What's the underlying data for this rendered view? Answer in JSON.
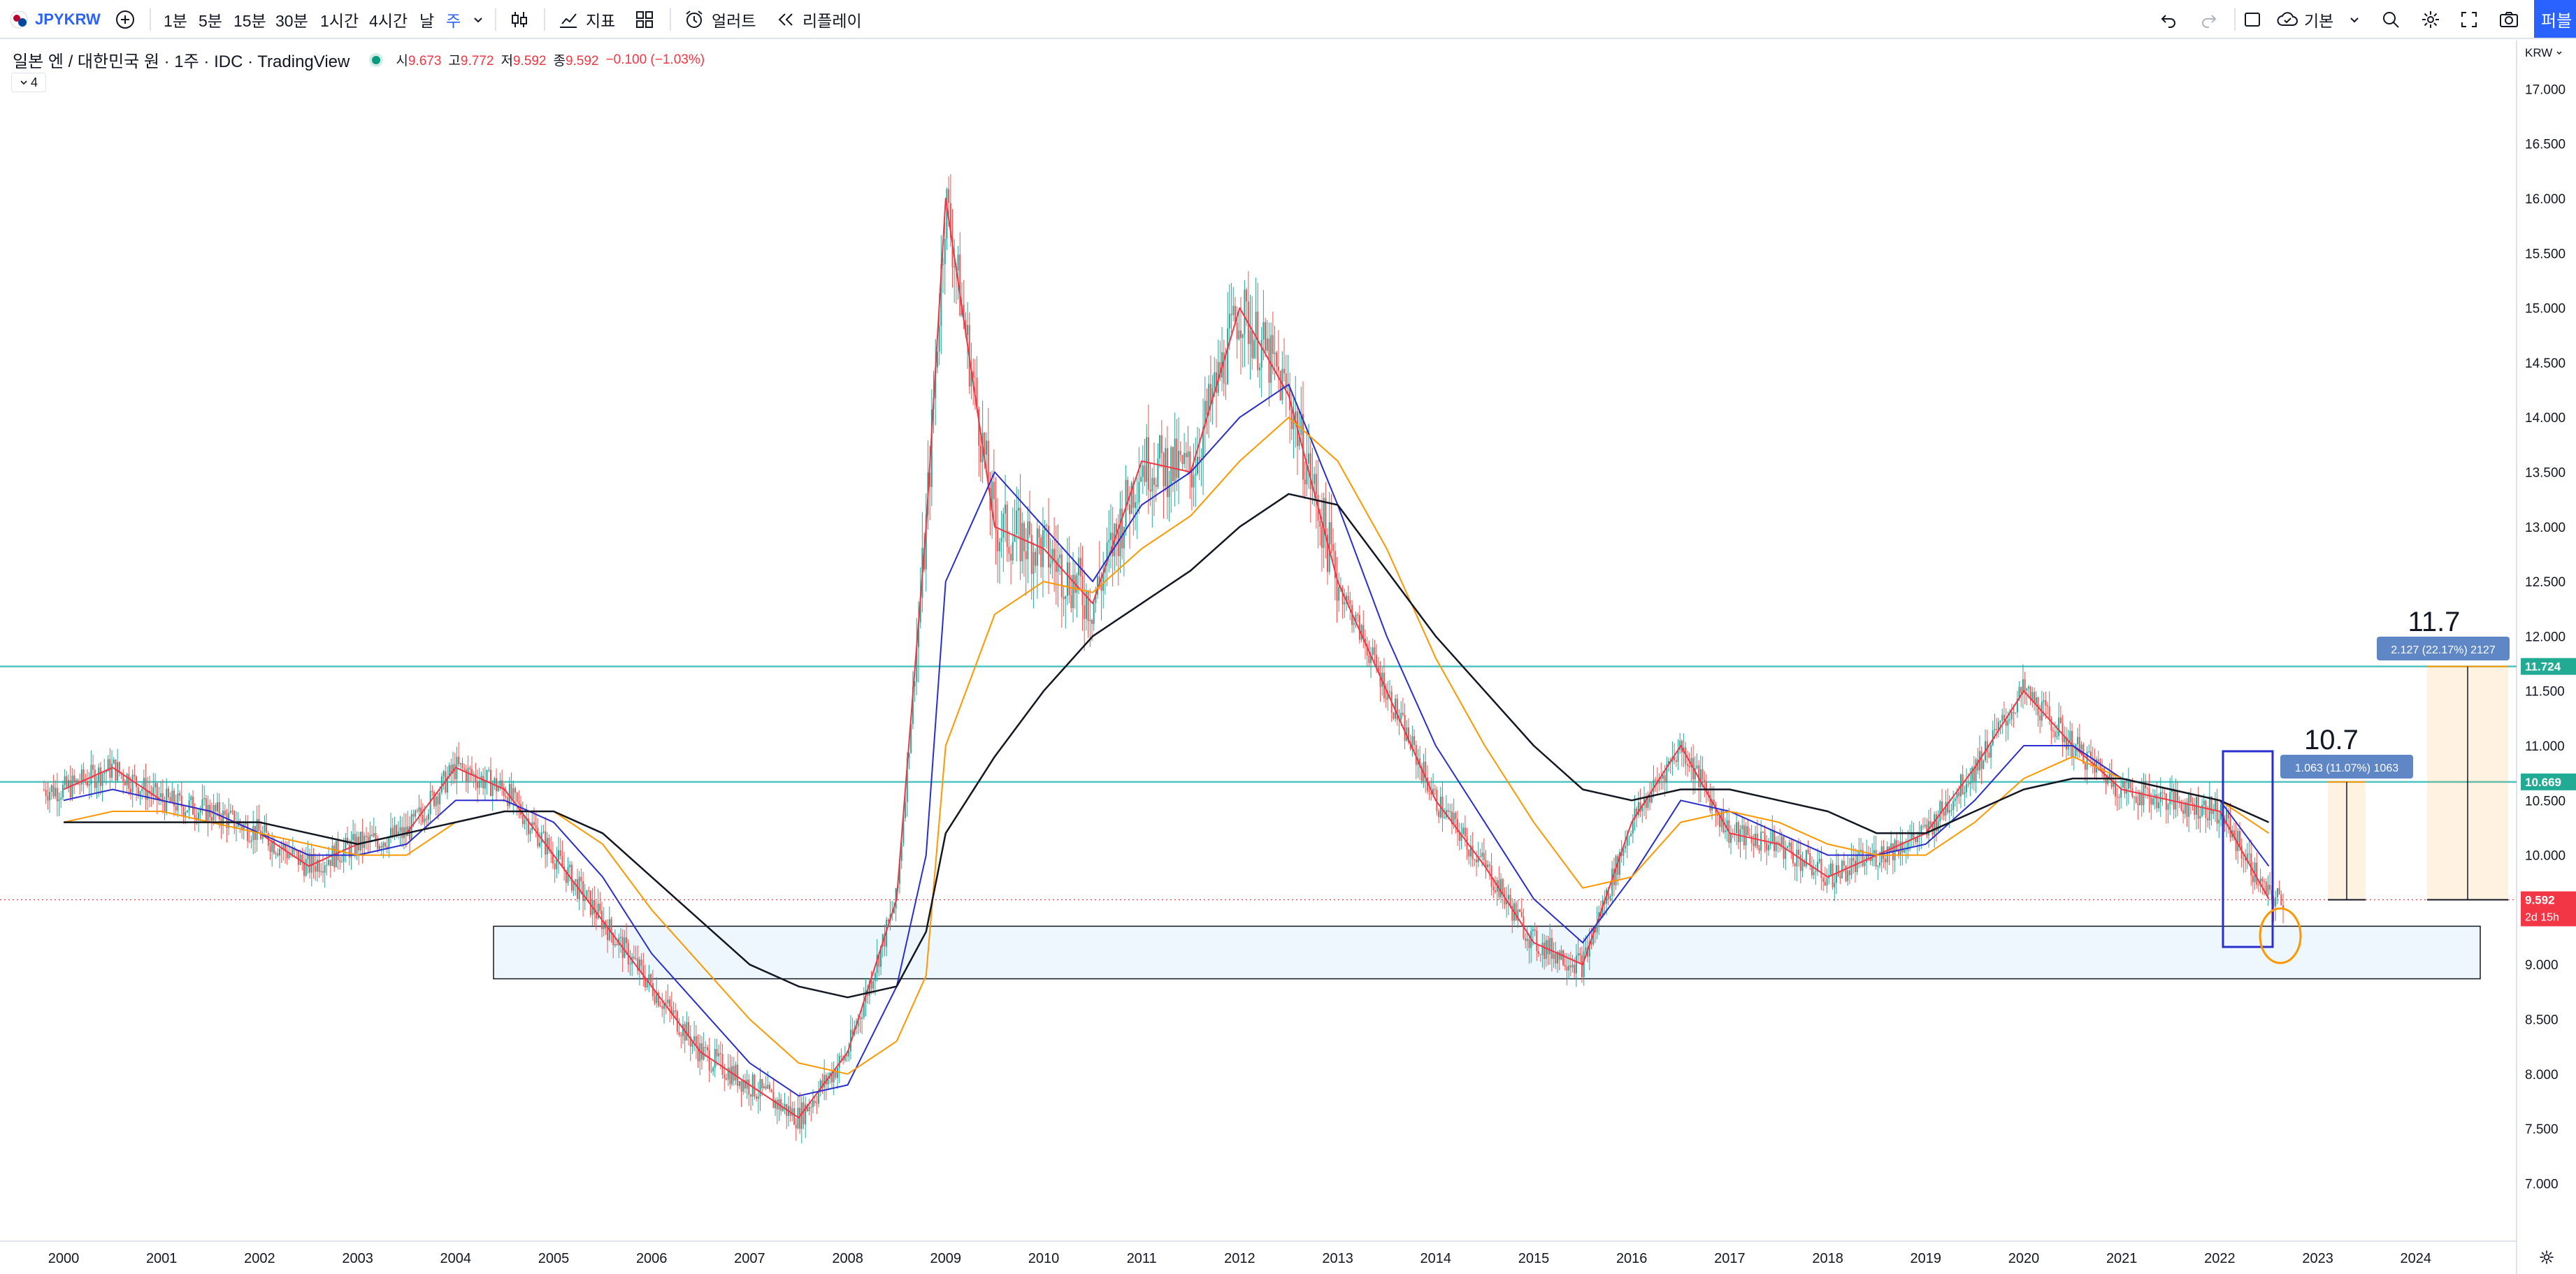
{
  "toolbar": {
    "symbol": "JPYKRW",
    "intervals": [
      "1분",
      "5분",
      "15분",
      "30분",
      "1시간",
      "4시간",
      "날",
      "주"
    ],
    "active_interval": "주",
    "indicators_label": "지표",
    "alerts_label": "얼러트",
    "replay_label": "리플레이",
    "layout_label": "기본",
    "publish_label": "퍼블"
  },
  "legend": {
    "title": "일본 엔 / 대한민국 원 · 1주 · IDC · TradingView",
    "open_label": "시",
    "open": "9.673",
    "high_label": "고",
    "high": "9.772",
    "low_label": "저",
    "low": "9.592",
    "close_label": "종",
    "close": "9.592",
    "change": "−0.100 (−1.03%)",
    "indicator_count": "4"
  },
  "price_axis": {
    "currency": "KRW",
    "ticks": [
      "17.000",
      "16.500",
      "16.000",
      "15.500",
      "15.000",
      "14.500",
      "14.000",
      "13.500",
      "13.000",
      "12.500",
      "12.000",
      "11.500",
      "11.000",
      "10.500",
      "10.000",
      "9.500",
      "9.000",
      "8.500",
      "8.000",
      "7.500",
      "7.000"
    ],
    "level_11724": "11.724",
    "level_10669": "10.669",
    "last_price": "9.592",
    "countdown": "2d 15h"
  },
  "time_axis": {
    "ticks": [
      "2000",
      "2001",
      "2002",
      "2003",
      "2004",
      "2005",
      "2006",
      "2007",
      "2008",
      "2009",
      "2010",
      "2011",
      "2012",
      "2013",
      "2014",
      "2015",
      "2016",
      "2017",
      "2018",
      "2019",
      "2020",
      "2021",
      "2022",
      "2023",
      "2024"
    ]
  },
  "annotations": {
    "target1_text": "10.7",
    "target1_measure": "1.063 (11.07%) 1063",
    "target2_text": "11.7",
    "target2_measure": "2.127 (22.17%) 2127"
  },
  "colors": {
    "up": "#26a69a",
    "down": "#ef5350",
    "ma_red": "#f23645",
    "ma_blue": "#2a2ecd",
    "ma_orange": "#ff9800",
    "ma_black": "#131722",
    "hline": "#4fc3c0",
    "accent": "#2962ff"
  },
  "chart_data": {
    "type": "line",
    "title": "일본 엔 / 대한민국 원 · 1주 · IDC · TradingView",
    "xlabel": "",
    "ylabel": "",
    "ylim": [
      6.8,
      17.3
    ],
    "x": [
      2000,
      2000.5,
      2001,
      2001.5,
      2002,
      2002.5,
      2003,
      2003.5,
      2004,
      2004.5,
      2005,
      2005.5,
      2006,
      2006.5,
      2007,
      2007.5,
      2008,
      2008.5,
      2008.8,
      2009,
      2009.5,
      2010,
      2010.5,
      2011,
      2011.5,
      2012,
      2012.5,
      2013,
      2013.5,
      2014,
      2014.5,
      2015,
      2015.5,
      2016,
      2016.5,
      2017,
      2017.5,
      2018,
      2018.5,
      2019,
      2019.5,
      2020,
      2020.5,
      2021,
      2021.5,
      2022,
      2022.5
    ],
    "series": [
      {
        "values": [
          10.6,
          10.8,
          10.5,
          10.4,
          10.2,
          9.9,
          10.1,
          10.2,
          10.8,
          10.6,
          10.0,
          9.4,
          8.8,
          8.2,
          7.9,
          7.6,
          8.2,
          9.6,
          13.0,
          16.0,
          13.0,
          12.8,
          12.3,
          13.6,
          13.5,
          15.0,
          14.2,
          12.5,
          11.5,
          10.5,
          9.9,
          9.2,
          9.0,
          10.3,
          11.0,
          10.2,
          10.1,
          9.8,
          10.0,
          10.2,
          10.8,
          11.5,
          11.0,
          10.6,
          10.5,
          10.4,
          9.6
        ]
      },
      {
        "values": [
          10.5,
          10.6,
          10.5,
          10.4,
          10.2,
          10.0,
          10.0,
          10.1,
          10.5,
          10.5,
          10.3,
          9.8,
          9.1,
          8.6,
          8.1,
          7.8,
          7.9,
          8.8,
          10.0,
          12.5,
          13.5,
          13.0,
          12.5,
          13.2,
          13.5,
          14.0,
          14.3,
          13.2,
          12.0,
          11.0,
          10.3,
          9.6,
          9.2,
          9.8,
          10.5,
          10.4,
          10.2,
          10.0,
          10.0,
          10.1,
          10.5,
          11.0,
          11.0,
          10.7,
          10.6,
          10.5,
          9.9
        ]
      },
      {
        "values": [
          10.3,
          10.4,
          10.4,
          10.3,
          10.2,
          10.1,
          10.0,
          10.0,
          10.3,
          10.4,
          10.4,
          10.1,
          9.5,
          9.0,
          8.5,
          8.1,
          8.0,
          8.3,
          8.9,
          11.0,
          12.2,
          12.5,
          12.4,
          12.8,
          13.1,
          13.6,
          14.0,
          13.6,
          12.8,
          11.8,
          11.0,
          10.3,
          9.7,
          9.8,
          10.3,
          10.4,
          10.3,
          10.1,
          10.0,
          10.0,
          10.3,
          10.7,
          10.9,
          10.7,
          10.6,
          10.5,
          10.2
        ]
      },
      {
        "values": [
          10.3,
          10.3,
          10.3,
          10.3,
          10.3,
          10.2,
          10.1,
          10.2,
          10.3,
          10.4,
          10.4,
          10.2,
          9.8,
          9.4,
          9.0,
          8.8,
          8.7,
          8.8,
          9.3,
          10.2,
          10.9,
          11.5,
          12.0,
          12.3,
          12.6,
          13.0,
          13.3,
          13.2,
          12.6,
          12.0,
          11.5,
          11.0,
          10.6,
          10.5,
          10.6,
          10.6,
          10.5,
          10.4,
          10.2,
          10.2,
          10.4,
          10.6,
          10.7,
          10.7,
          10.6,
          10.5,
          10.3
        ]
      }
    ],
    "horizontal_levels": [
      11.724,
      10.669
    ],
    "support_zone": [
      8.87,
      9.35
    ],
    "last_price": 9.592
  }
}
